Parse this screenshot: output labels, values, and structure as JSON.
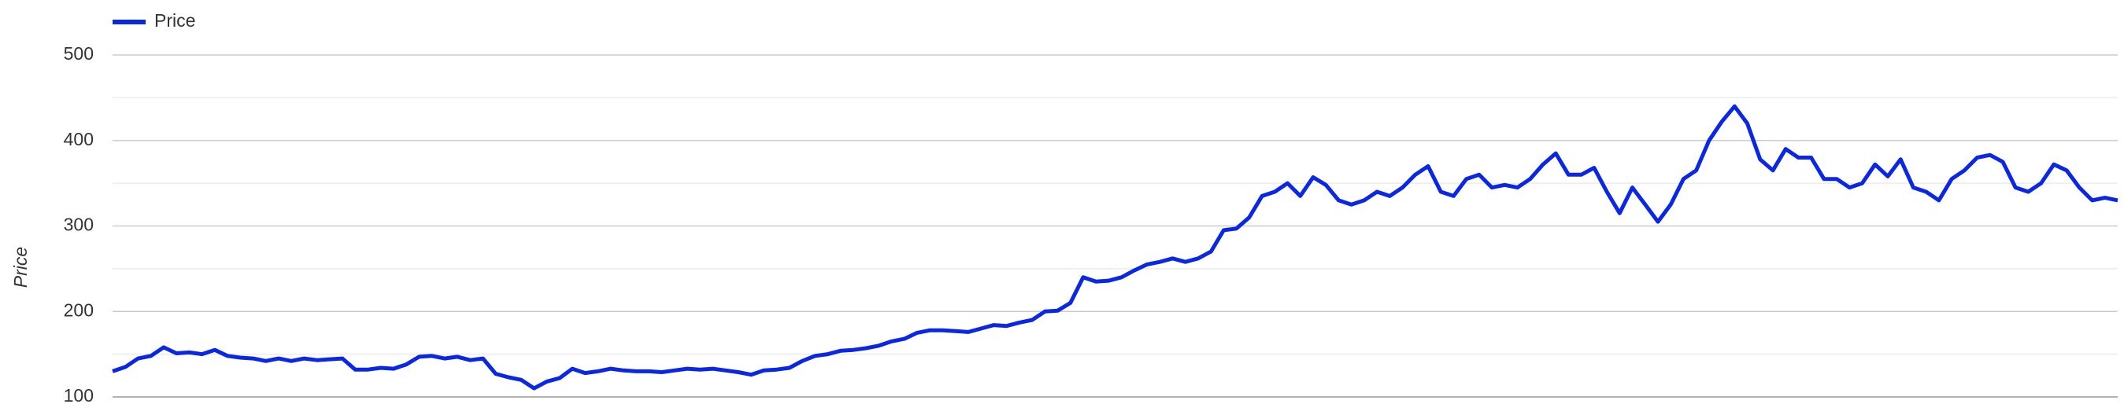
{
  "chart_data": {
    "type": "line",
    "y_label": "Price",
    "legend": "top-left",
    "grid": true,
    "ylim": [
      100,
      500
    ],
    "yticks": [
      100,
      200,
      300,
      400,
      500
    ],
    "minor_yticks": [
      150,
      250,
      350,
      450
    ],
    "series": [
      {
        "name": "Price",
        "color": "#0b27e6",
        "values": [
          130,
          135,
          145,
          148,
          158,
          151,
          152,
          150,
          155,
          148,
          146,
          145,
          142,
          145,
          142,
          145,
          143,
          144,
          145,
          132,
          132,
          134,
          133,
          138,
          147,
          148,
          145,
          147,
          143,
          145,
          127,
          123,
          120,
          110,
          118,
          122,
          133,
          128,
          130,
          133,
          131,
          130,
          130,
          129,
          131,
          133,
          132,
          133,
          131,
          129,
          126,
          131,
          132,
          134,
          142,
          148,
          150,
          154,
          155,
          157,
          160,
          165,
          168,
          175,
          178,
          178,
          177,
          176,
          180,
          184,
          183,
          187,
          190,
          200,
          201,
          210,
          240,
          235,
          236,
          240,
          248,
          255,
          258,
          262,
          258,
          262,
          270,
          295,
          297,
          310,
          335,
          340,
          350,
          335,
          357,
          348,
          330,
          325,
          330,
          340,
          335,
          345,
          360,
          370,
          340,
          335,
          355,
          360,
          345,
          348,
          345,
          355,
          372,
          385,
          360,
          360,
          368,
          340,
          315,
          345,
          325,
          305,
          325,
          355,
          365,
          400,
          422,
          440,
          420,
          378,
          365,
          390,
          380,
          380,
          355,
          355,
          345,
          350,
          372,
          358,
          378,
          345,
          340,
          330,
          355,
          365,
          380,
          383,
          375,
          345,
          340,
          350,
          372,
          365,
          345,
          330,
          333,
          330
        ]
      }
    ]
  }
}
